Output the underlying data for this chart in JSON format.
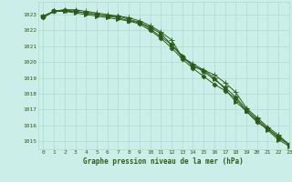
{
  "title": "Graphe pression niveau de la mer (hPa)",
  "background_color": "#cceee8",
  "grid_color": "#aaddcc",
  "line_color": "#2d5a1b",
  "xlim": [
    -0.5,
    23
  ],
  "ylim": [
    1014.5,
    1023.8
  ],
  "yticks": [
    1015,
    1016,
    1017,
    1018,
    1019,
    1020,
    1021,
    1022,
    1023
  ],
  "xticks": [
    0,
    1,
    2,
    3,
    4,
    5,
    6,
    7,
    8,
    9,
    10,
    11,
    12,
    13,
    14,
    15,
    16,
    17,
    18,
    19,
    20,
    21,
    22,
    23
  ],
  "series": [
    [
      1022.9,
      1023.2,
      1023.2,
      1023.1,
      1023.0,
      1022.9,
      1022.8,
      1022.7,
      1022.6,
      1022.5,
      1022.2,
      1021.8,
      1021.1,
      1020.4,
      1019.7,
      1019.5,
      1019.0,
      1018.3,
      1017.5,
      1016.9,
      1016.3,
      1015.7,
      1015.1,
      1014.7
    ],
    [
      1022.9,
      1023.2,
      1023.3,
      1023.3,
      1023.2,
      1023.1,
      1023.0,
      1022.9,
      1022.8,
      1022.6,
      1022.3,
      1021.9,
      1021.4,
      1020.3,
      1019.9,
      1019.5,
      1019.2,
      1018.7,
      1018.1,
      1017.1,
      1016.5,
      1015.9,
      1015.4,
      1014.8
    ],
    [
      1022.8,
      1023.2,
      1023.3,
      1023.2,
      1023.1,
      1023.0,
      1022.9,
      1022.8,
      1022.6,
      1022.4,
      1022.0,
      1021.5,
      1020.9,
      1020.2,
      1019.6,
      1019.1,
      1018.6,
      1018.2,
      1017.7,
      1016.9,
      1016.2,
      1015.8,
      1015.2,
      1014.8
    ],
    [
      1022.9,
      1023.2,
      1023.2,
      1023.2,
      1023.1,
      1023.0,
      1022.9,
      1022.9,
      1022.7,
      1022.5,
      1022.1,
      1021.6,
      1021.1,
      1020.3,
      1019.8,
      1019.4,
      1018.9,
      1018.4,
      1017.8,
      1017.0,
      1016.4,
      1015.8,
      1015.3,
      1014.8
    ]
  ],
  "markers": [
    ">",
    "+",
    "D",
    "*"
  ],
  "marker_sizes": [
    3,
    4,
    2.5,
    4
  ]
}
